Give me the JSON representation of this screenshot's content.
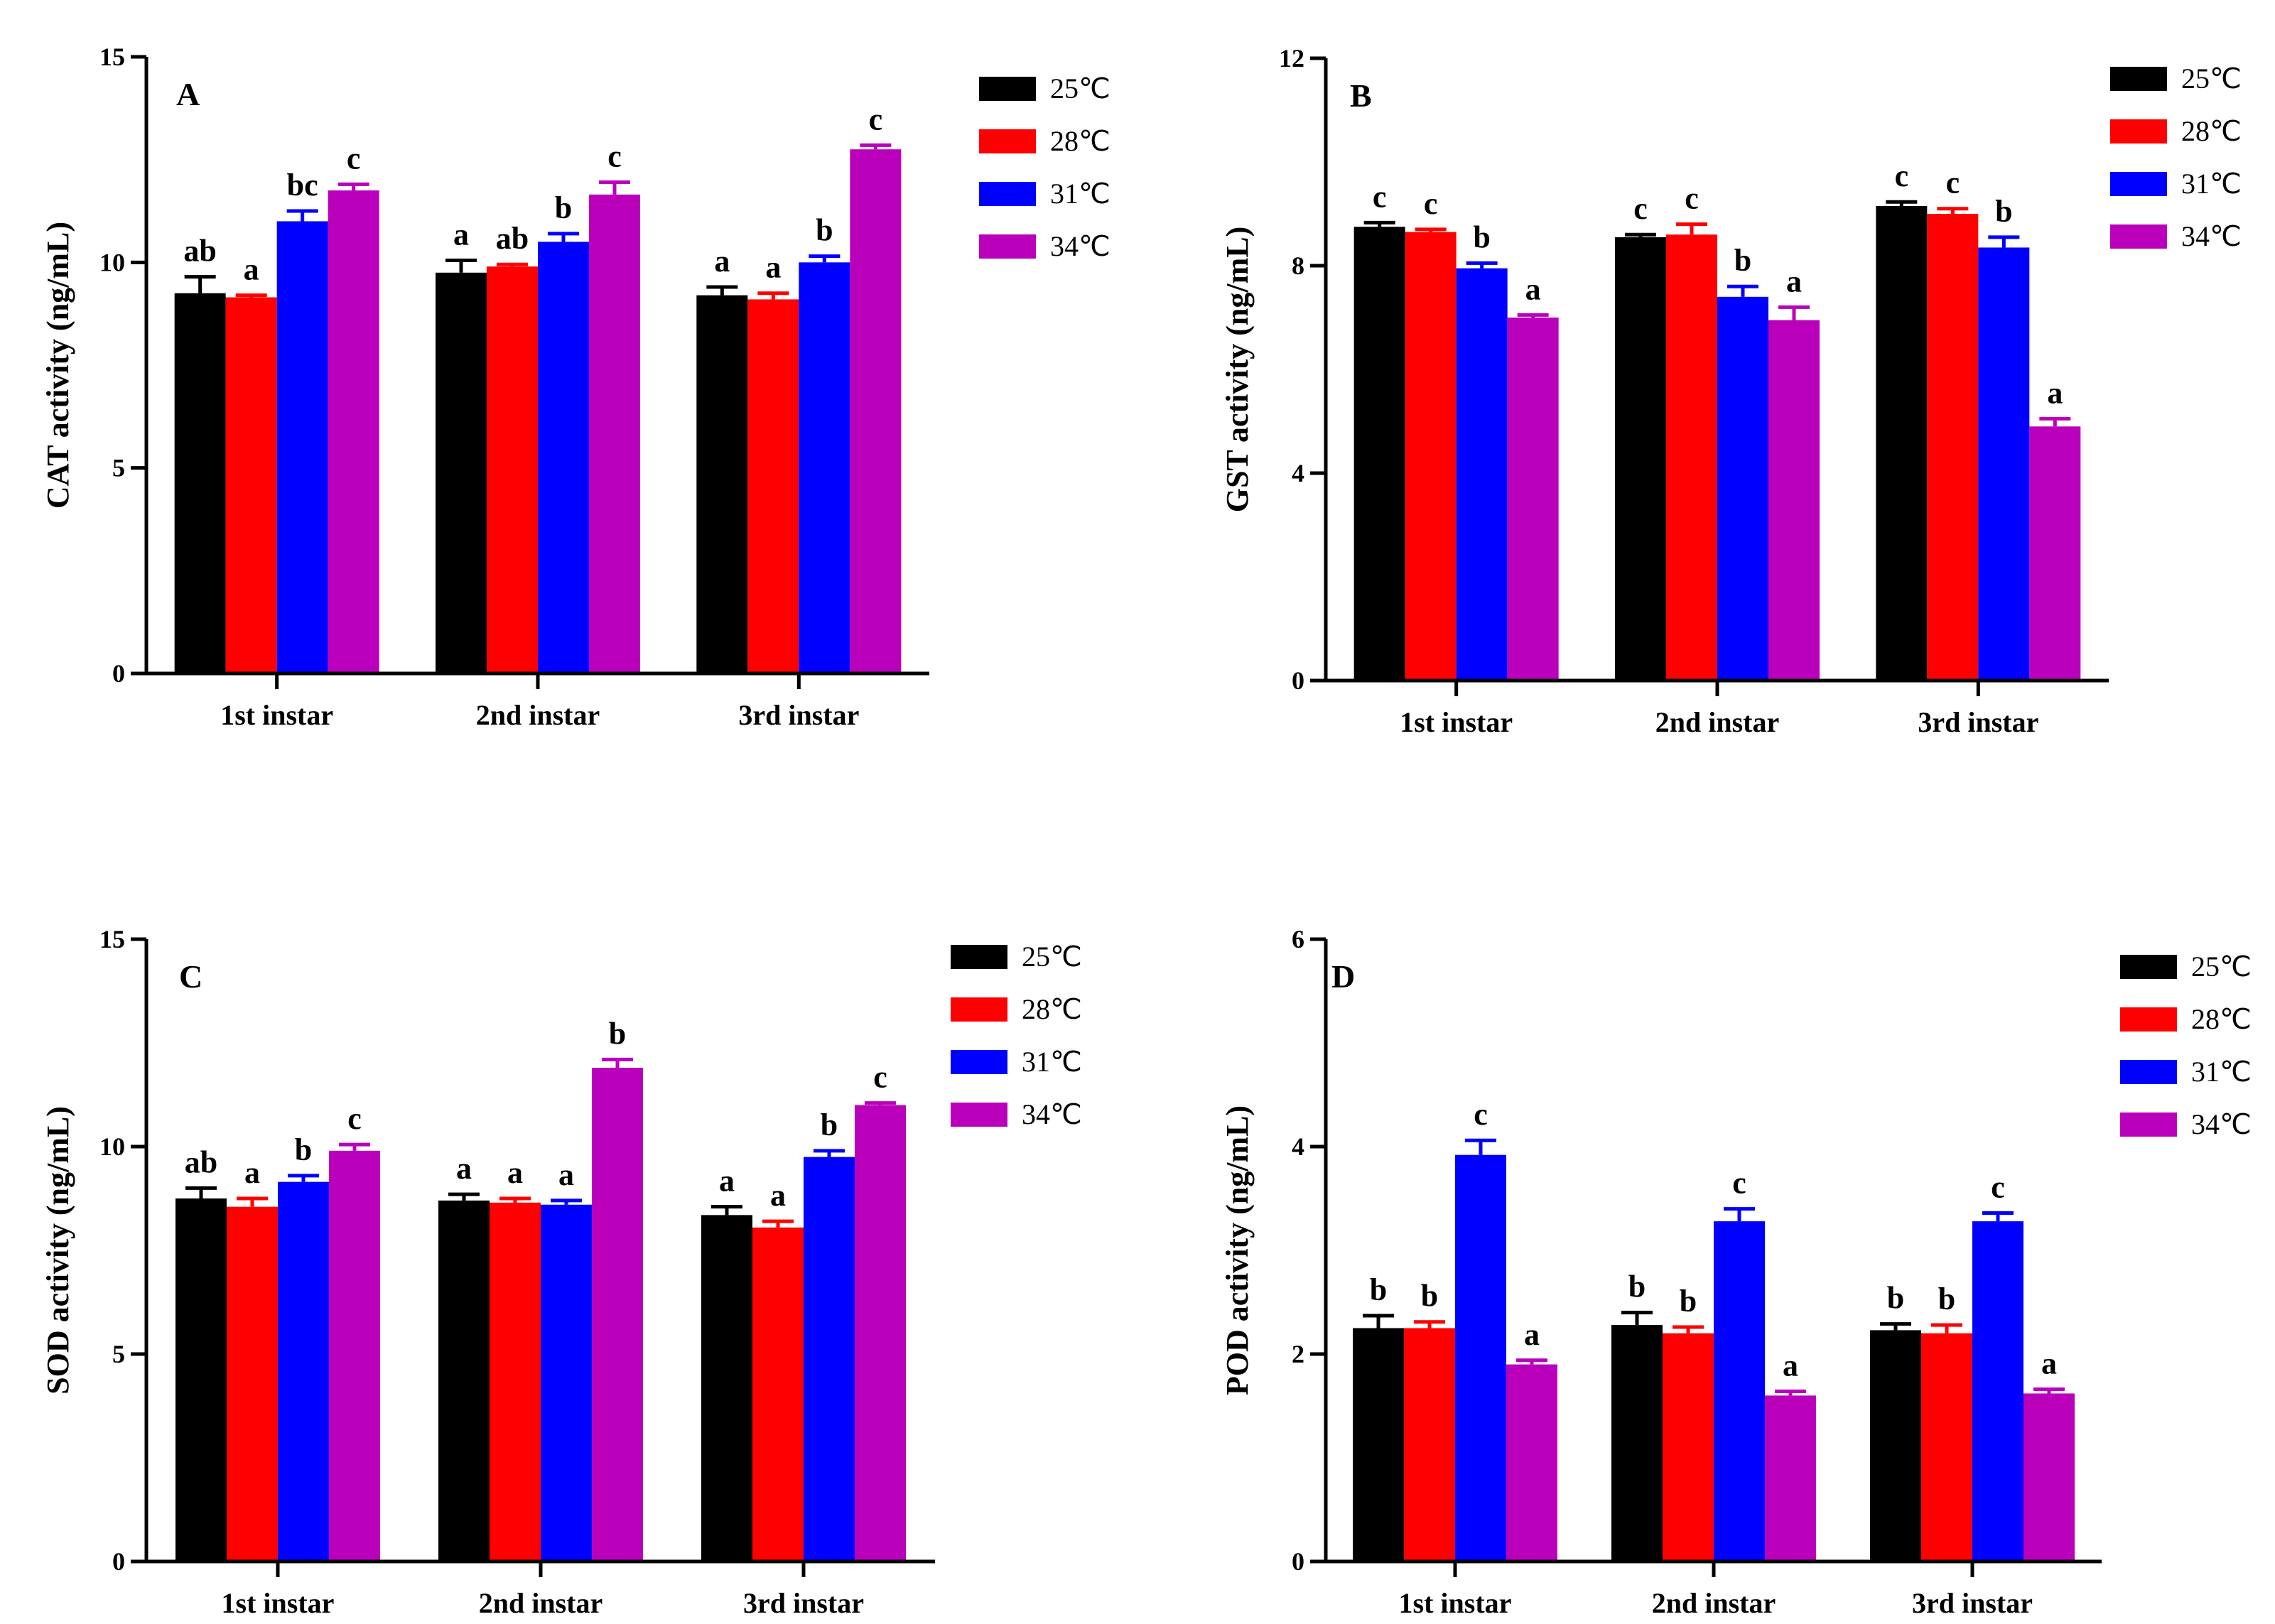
{
  "colors": {
    "25°C": "#000000",
    "28°C": "#ff0000",
    "31°C": "#0000ff",
    "34°C": "#bb00bb"
  },
  "chart_data": [
    {
      "type": "bar",
      "panel": "A",
      "ylabel": "CAT activity (ng/mL)",
      "ylim": [
        0,
        15
      ],
      "yticks": [
        0,
        5,
        10,
        15
      ],
      "categories": [
        "1st instar",
        "2nd instar",
        "3rd instar"
      ],
      "legend_position": "top-right",
      "series": [
        {
          "name": "25℃",
          "values": [
            9.25,
            9.75,
            9.2
          ],
          "errors": [
            0.4,
            0.3,
            0.2
          ],
          "labels": [
            "ab",
            "a",
            "a"
          ]
        },
        {
          "name": "28℃",
          "values": [
            9.15,
            9.9,
            9.1
          ],
          "errors": [
            0.05,
            0.05,
            0.15
          ],
          "labels": [
            "a",
            "ab",
            "a"
          ]
        },
        {
          "name": "31℃",
          "values": [
            11.0,
            10.5,
            10.0
          ],
          "errors": [
            0.25,
            0.2,
            0.15
          ],
          "labels": [
            "bc",
            "b",
            "b"
          ]
        },
        {
          "name": "34℃",
          "values": [
            11.75,
            11.65,
            12.75
          ],
          "errors": [
            0.15,
            0.3,
            0.1
          ],
          "labels": [
            "c",
            "c",
            "c"
          ]
        }
      ]
    },
    {
      "type": "bar",
      "panel": "B",
      "ylabel": "GST activity (ng/mL)",
      "ylim": [
        0,
        12
      ],
      "yticks": [
        0,
        4,
        8,
        12
      ],
      "categories": [
        "1st instar",
        "2nd instar",
        "3rd instar"
      ],
      "legend_position": "top-right",
      "series": [
        {
          "name": "25℃",
          "values": [
            8.75,
            8.55,
            9.15
          ],
          "errors": [
            0.08,
            0.05,
            0.08
          ],
          "labels": [
            "c",
            "c",
            "c"
          ]
        },
        {
          "name": "28℃",
          "values": [
            8.65,
            8.6,
            9.0
          ],
          "errors": [
            0.05,
            0.2,
            0.1
          ],
          "labels": [
            "c",
            "c",
            "c"
          ]
        },
        {
          "name": "31℃",
          "values": [
            7.95,
            7.4,
            8.35
          ],
          "errors": [
            0.1,
            0.2,
            0.2
          ],
          "labels": [
            "b",
            "b",
            "b"
          ]
        },
        {
          "name": "34℃",
          "values": [
            7.0,
            6.95,
            4.9
          ],
          "errors": [
            0.05,
            0.25,
            0.15
          ],
          "labels": [
            "a",
            "a",
            "a"
          ]
        }
      ]
    },
    {
      "type": "bar",
      "panel": "C",
      "ylabel": "SOD activity (ng/mL)",
      "ylim": [
        0,
        15
      ],
      "yticks": [
        0,
        5,
        10,
        15
      ],
      "categories": [
        "1st instar",
        "2nd instar",
        "3rd instar"
      ],
      "legend_position": "top-right",
      "series": [
        {
          "name": "25℃",
          "values": [
            8.75,
            8.7,
            8.35
          ],
          "errors": [
            0.25,
            0.15,
            0.2
          ],
          "labels": [
            "ab",
            "a",
            "a"
          ]
        },
        {
          "name": "28℃",
          "values": [
            8.55,
            8.65,
            8.05
          ],
          "errors": [
            0.2,
            0.1,
            0.15
          ],
          "labels": [
            "a",
            "a",
            "a"
          ]
        },
        {
          "name": "31℃",
          "values": [
            9.15,
            8.6,
            9.75
          ],
          "errors": [
            0.15,
            0.1,
            0.15
          ],
          "labels": [
            "b",
            "a",
            "b"
          ]
        },
        {
          "name": "34℃",
          "values": [
            9.9,
            11.9,
            11.0
          ],
          "errors": [
            0.15,
            0.2,
            0.05
          ],
          "labels": [
            "c",
            "b",
            "c"
          ]
        }
      ]
    },
    {
      "type": "bar",
      "panel": "D",
      "ylabel": "POD activity (ng/mL)",
      "ylim": [
        0,
        6
      ],
      "yticks": [
        0,
        2,
        4,
        6
      ],
      "categories": [
        "1st instar",
        "2nd instar",
        "3rd instar"
      ],
      "legend_position": "top-right",
      "series": [
        {
          "name": "25℃",
          "values": [
            2.25,
            2.28,
            2.23
          ],
          "errors": [
            0.12,
            0.12,
            0.06
          ],
          "labels": [
            "b",
            "b",
            "b"
          ]
        },
        {
          "name": "28℃",
          "values": [
            2.25,
            2.2,
            2.2
          ],
          "errors": [
            0.06,
            0.06,
            0.08
          ],
          "labels": [
            "b",
            "b",
            "b"
          ]
        },
        {
          "name": "31℃",
          "values": [
            3.92,
            3.28,
            3.28
          ],
          "errors": [
            0.14,
            0.12,
            0.08
          ],
          "labels": [
            "c",
            "c",
            "c"
          ]
        },
        {
          "name": "34℃",
          "values": [
            1.9,
            1.6,
            1.62
          ],
          "errors": [
            0.04,
            0.04,
            0.04
          ],
          "labels": [
            "a",
            "a",
            "a"
          ]
        }
      ]
    }
  ]
}
